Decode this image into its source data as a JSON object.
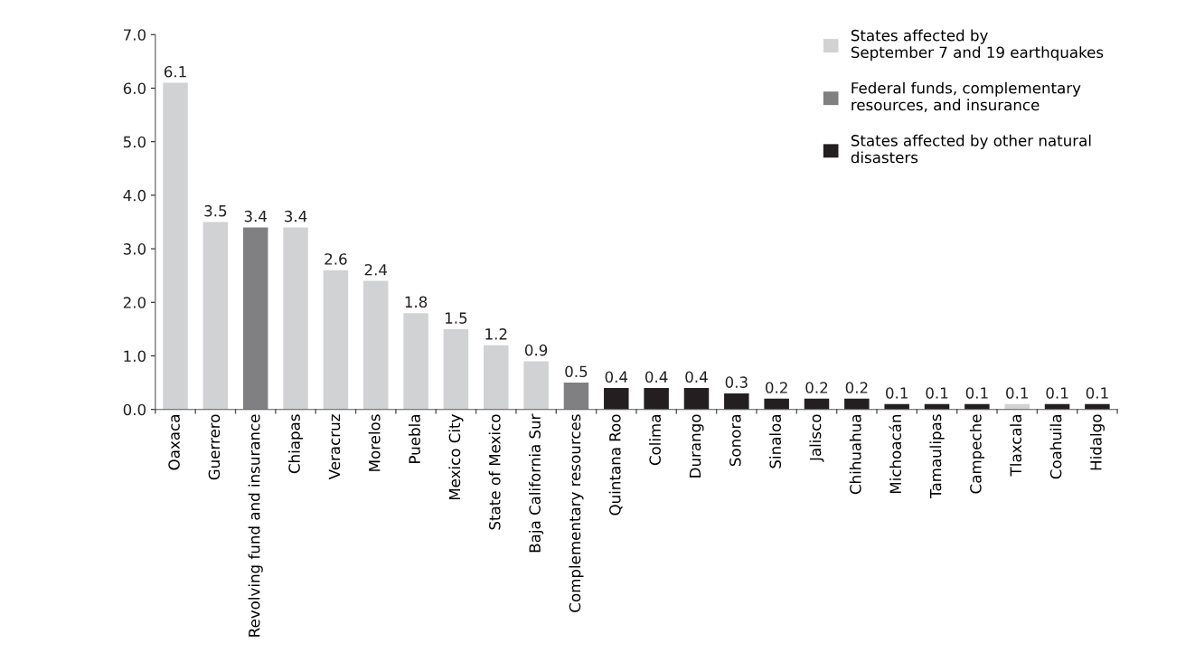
{
  "chart_data": {
    "type": "bar",
    "categories": [
      "Oaxaca",
      "Guerrero",
      "Revolving fund and insurance",
      "Chiapas",
      "Veracruz",
      "Morelos",
      "Puebla",
      "Mexico City",
      "State of Mexico",
      "Baja California Sur",
      "Complementary resources",
      "Quintana Roo",
      "Colima",
      "Durango",
      "Sonora",
      "Sinaloa",
      "Jalisco",
      "Chihuahua",
      "Michoacán",
      "Tamaulipas",
      "Campeche",
      "Tlaxcala",
      "Coahuila",
      "Hidalgo"
    ],
    "series": [
      {
        "name": "States affected by\nSeptember 7 and 19 earthquakes",
        "color": "#d1d2d4",
        "values": [
          6.1,
          3.5,
          null,
          3.4,
          2.6,
          2.4,
          1.8,
          1.5,
          1.2,
          0.9,
          null,
          null,
          null,
          null,
          null,
          null,
          null,
          null,
          null,
          null,
          null,
          0.1,
          null,
          null
        ]
      },
      {
        "name": "Federal funds, complementary\nresources, and insurance",
        "color": "#808083",
        "values": [
          null,
          null,
          3.4,
          null,
          null,
          null,
          null,
          null,
          null,
          null,
          0.5,
          null,
          null,
          null,
          null,
          null,
          null,
          null,
          null,
          null,
          null,
          null,
          null,
          null
        ]
      },
      {
        "name": "States affected by other natural\ndisasters",
        "color": "#231f20",
        "values": [
          null,
          null,
          null,
          null,
          null,
          null,
          null,
          null,
          null,
          null,
          null,
          0.4,
          0.4,
          0.4,
          0.3,
          0.2,
          0.2,
          0.2,
          0.1,
          0.1,
          0.1,
          null,
          0.1,
          0.1
        ]
      }
    ],
    "ylim": [
      0,
      7
    ],
    "yticks": [
      {
        "value": 0,
        "label": "0.0"
      },
      {
        "value": 1,
        "label": "1.0"
      },
      {
        "value": 2,
        "label": "2.0"
      },
      {
        "value": 3,
        "label": "3.0"
      },
      {
        "value": 4,
        "label": "4.0"
      },
      {
        "value": 5,
        "label": "5.0"
      },
      {
        "value": 6,
        "label": "6.0"
      },
      {
        "value": 7,
        "label": "7.0"
      }
    ],
    "data_labels": true,
    "grid": false,
    "legend": "top right"
  }
}
